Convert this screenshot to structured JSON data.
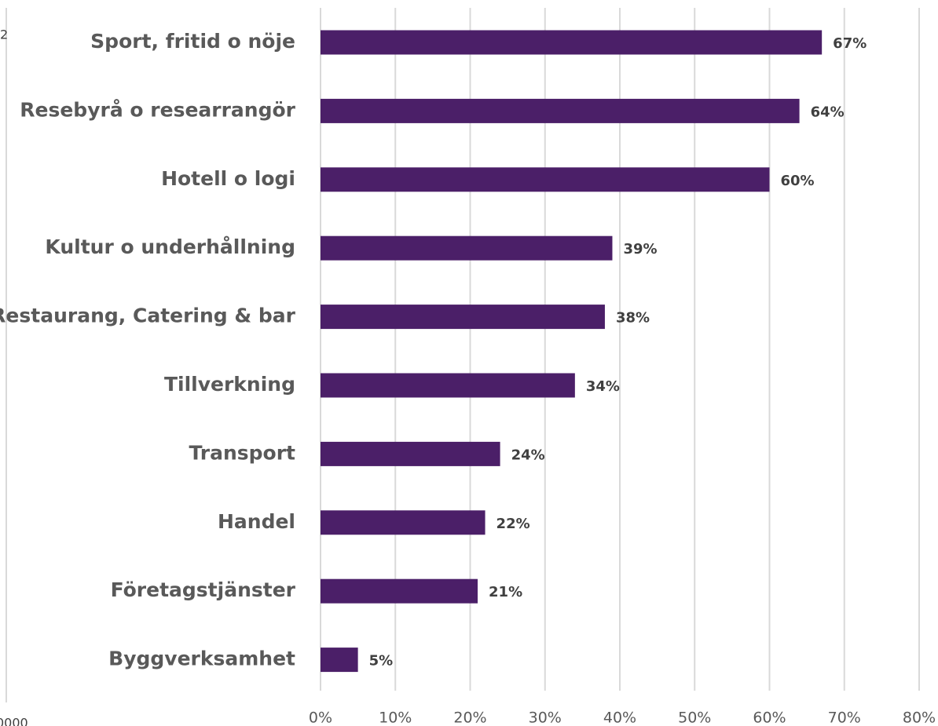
{
  "chart_data": {
    "type": "barh",
    "categories": [
      "Sport, fritid o nöje",
      "Resebyrå o researrangör",
      "Hotell o logi",
      "Kultur o underhållning",
      "Restaurang, Catering & bar",
      "Tillverkning",
      "Transport",
      "Handel",
      "Företagstjänster",
      "Byggverksamhet"
    ],
    "values": [
      67,
      64,
      60,
      39,
      38,
      34,
      24,
      22,
      21,
      5
    ],
    "value_labels": [
      "67%",
      "64%",
      "60%",
      "39%",
      "38%",
      "34%",
      "24%",
      "22%",
      "21%",
      "5%"
    ],
    "color": "#4b1f68",
    "xlim": [
      0,
      80
    ],
    "xticks": [
      {
        "value": 0,
        "label": "0%"
      },
      {
        "value": 10,
        "label": "10%"
      },
      {
        "value": 20,
        "label": "20%"
      },
      {
        "value": 30,
        "label": "30%"
      },
      {
        "value": 40,
        "label": "40%"
      },
      {
        "value": 50,
        "label": "50%"
      },
      {
        "value": 60,
        "label": "60%"
      },
      {
        "value": 70,
        "label": "70%"
      },
      {
        "value": 80,
        "label": "80%"
      }
    ],
    "grid": true,
    "annotations": [
      "2",
      "0000"
    ]
  }
}
